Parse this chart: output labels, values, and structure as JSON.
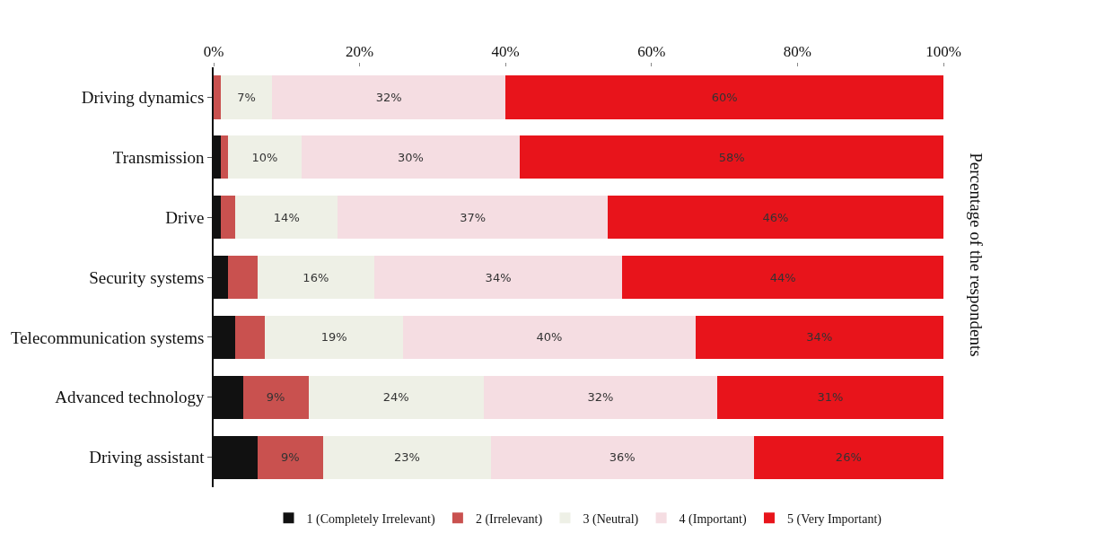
{
  "chart_data": {
    "type": "bar",
    "orientation": "horizontal",
    "stacked": true,
    "ylabel": "Percentage of the respondents",
    "categories": [
      "Driving dynamics",
      "Transmission",
      "Drive",
      "Security systems",
      "Telecommunication systems",
      "Advanced technology",
      "Driving assistant"
    ],
    "series": [
      {
        "name": "1 (Completely Irrelevant)",
        "color": "#111111",
        "values": [
          0,
          1,
          1,
          2,
          3,
          4,
          6
        ]
      },
      {
        "name": "2 (Irrelevant)",
        "color": "#c9514f",
        "values": [
          1,
          1,
          2,
          4,
          4,
          9,
          9
        ],
        "value_labels": [
          null,
          null,
          null,
          null,
          null,
          "9%",
          "9%"
        ]
      },
      {
        "name": "3 (Neutral)",
        "color": "#eef0e6",
        "values": [
          7,
          10,
          14,
          16,
          19,
          24,
          23
        ],
        "value_labels": [
          "7%",
          "10%",
          "14%",
          "16%",
          "19%",
          "24%",
          "23%"
        ]
      },
      {
        "name": "4 (Important)",
        "color": "#f5dde2",
        "values": [
          32,
          30,
          37,
          34,
          40,
          32,
          36
        ],
        "value_labels": [
          "32%",
          "30%",
          "37%",
          "34%",
          "40%",
          "32%",
          "36%"
        ]
      },
      {
        "name": "5 (Very Important)",
        "color": "#e8141b",
        "values": [
          60,
          58,
          46,
          44,
          34,
          31,
          26
        ],
        "value_labels": [
          "60%",
          "58%",
          "46%",
          "44%",
          "34%",
          "31%",
          "26%"
        ]
      }
    ],
    "xlim": [
      0,
      100
    ],
    "xticks": [
      {
        "value": 0,
        "label": "0%"
      },
      {
        "value": 20,
        "label": "20%"
      },
      {
        "value": 40,
        "label": "40%"
      },
      {
        "value": 60,
        "label": "60%"
      },
      {
        "value": 80,
        "label": "80%"
      },
      {
        "value": 100,
        "label": "100%"
      }
    ],
    "legend": "bottom"
  }
}
